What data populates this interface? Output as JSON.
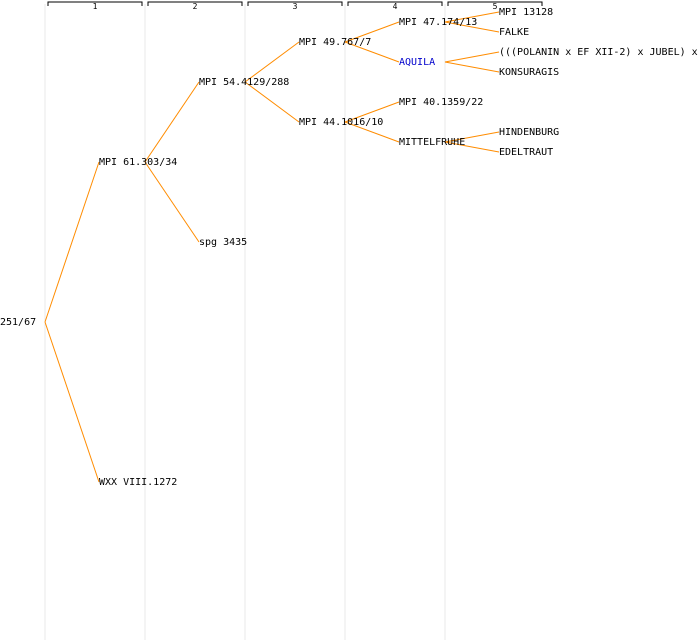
{
  "colors": {
    "edge": "#ff8c00",
    "column_line": "#e8e8e8",
    "header_bracket": "#000000",
    "label": "#000000",
    "highlight_label": "#0000cc"
  },
  "generations": [
    "1",
    "2",
    "3",
    "4",
    "5"
  ],
  "nodes": [
    {
      "id": "n0",
      "gen": 0,
      "label": "251/67"
    },
    {
      "id": "n1",
      "gen": 1,
      "label": "MPI 61.303/34",
      "parent": "n0"
    },
    {
      "id": "n2",
      "gen": 1,
      "label": "WXX VIII.1272",
      "parent": "n0"
    },
    {
      "id": "n3",
      "gen": 2,
      "label": "MPI 54.4129/288",
      "parent": "n1"
    },
    {
      "id": "n4",
      "gen": 2,
      "label": "spg 3435",
      "parent": "n1"
    },
    {
      "id": "n5",
      "gen": 3,
      "label": "MPI 49.767/7",
      "parent": "n3"
    },
    {
      "id": "n6",
      "gen": 3,
      "label": "MPI 44.1016/10",
      "parent": "n3"
    },
    {
      "id": "n7",
      "gen": 4,
      "label": "MPI 47.174/13",
      "parent": "n5"
    },
    {
      "id": "n8",
      "gen": 4,
      "label": "AQUILA",
      "parent": "n5",
      "highlight": true
    },
    {
      "id": "n9",
      "gen": 4,
      "label": "MPI 40.1359/22",
      "parent": "n6"
    },
    {
      "id": "n10",
      "gen": 4,
      "label": "MITTELFRUHE",
      "parent": "n6"
    },
    {
      "id": "n11",
      "gen": 5,
      "label": "MPI 13128",
      "parent": "n7"
    },
    {
      "id": "n12",
      "gen": 5,
      "label": "FALKE",
      "parent": "n7"
    },
    {
      "id": "n13",
      "gen": 5,
      "label": "(((POLANIN x EF XII-2) x JUBEL) x",
      "parent": "n8"
    },
    {
      "id": "n14",
      "gen": 5,
      "label": "KONSURAGIS",
      "parent": "n8"
    },
    {
      "id": "n15",
      "gen": 5,
      "label": "HINDENBURG",
      "parent": "n10"
    },
    {
      "id": "n16",
      "gen": 5,
      "label": "EDELTRAUT",
      "parent": "n10"
    }
  ]
}
